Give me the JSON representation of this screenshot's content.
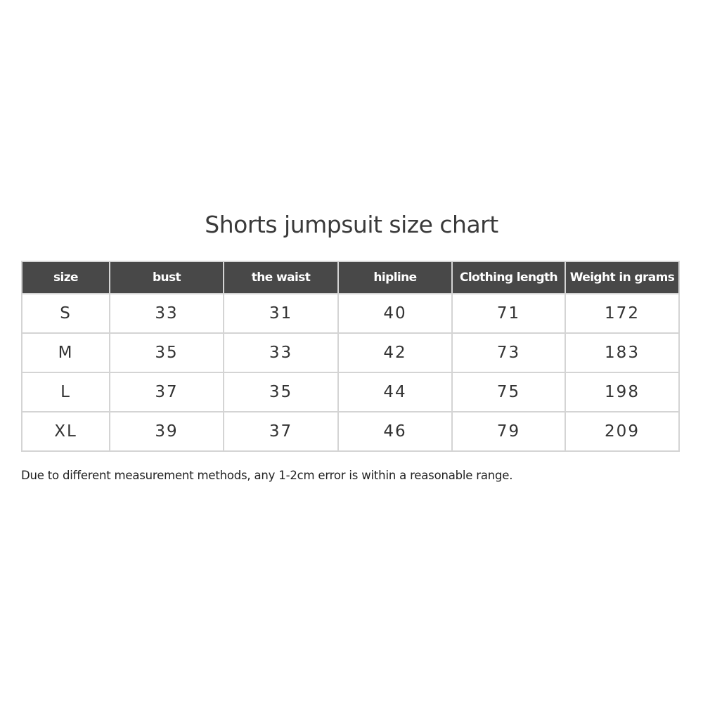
{
  "title": "Shorts jumpsuit size chart",
  "table": {
    "headers": [
      "size",
      "bust",
      "the waist",
      "hipline",
      "Clothing length",
      "Weight in grams"
    ],
    "rows": [
      [
        "S",
        "33",
        "31",
        "40",
        "71",
        "172"
      ],
      [
        "M",
        "35",
        "33",
        "42",
        "73",
        "183"
      ],
      [
        "L",
        "37",
        "35",
        "44",
        "75",
        "198"
      ],
      [
        "XL",
        "39",
        "37",
        "46",
        "79",
        "209"
      ]
    ]
  },
  "note": "Due to different measurement methods, any 1-2cm error is within a reasonable range.",
  "colors": {
    "header_bg": "#484848",
    "header_text": "#ffffff",
    "border": "#d4d4d4"
  }
}
